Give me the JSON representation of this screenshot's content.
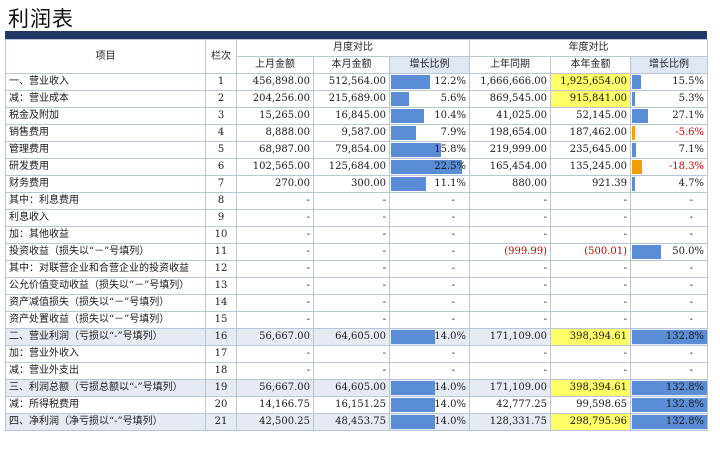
{
  "title": "利润表",
  "header": {
    "item": "项目",
    "col_index": "栏次",
    "monthly_group": "月度对比",
    "yearly_group": "年度对比",
    "last_month": "上月金额",
    "this_month": "本月金额",
    "growth": "增长比例",
    "last_year": "上年同期",
    "this_year": "本年金额",
    "growth_y": "增长比例"
  },
  "colors": {
    "header_bar": "#1f3864",
    "bar": "#5b8cd6",
    "neg_bar": "#f2a000",
    "highlight": "#ffff66",
    "major_row": "#e6ebf3"
  },
  "rows": [
    {
      "name": "一、营业收入",
      "idx": "1",
      "lm": "456,898.00",
      "tm": "512,564.00",
      "mg": "12.2%",
      "mgv": 0.122,
      "ly": "1,666,666.00",
      "ty": "1,925,654.00",
      "yg": "15.5%",
      "ygv": 0.155,
      "hy": true,
      "major": false
    },
    {
      "name": "减：营业成本",
      "idx": "2",
      "lm": "204,256.00",
      "tm": "215,689.00",
      "mg": "5.6%",
      "mgv": 0.056,
      "ly": "869,545.00",
      "ty": "915,841.00",
      "yg": "5.3%",
      "ygv": 0.053,
      "hy": true,
      "major": false
    },
    {
      "name": "税金及附加",
      "idx": "3",
      "lm": "15,265.00",
      "tm": "16,845.00",
      "mg": "10.4%",
      "mgv": 0.104,
      "ly": "41,025.00",
      "ty": "52,145.00",
      "yg": "27.1%",
      "ygv": 0.271,
      "hy": false,
      "major": false
    },
    {
      "name": "销售费用",
      "idx": "4",
      "lm": "8,888.00",
      "tm": "9,587.00",
      "mg": "7.9%",
      "mgv": 0.079,
      "ly": "198,654.00",
      "ty": "187,462.00",
      "yg": "-5.6%",
      "ygv": -0.056,
      "hy": false,
      "major": false
    },
    {
      "name": "管理费用",
      "idx": "5",
      "lm": "68,987.00",
      "tm": "79,854.00",
      "mg": "15.8%",
      "mgv": 0.158,
      "ly": "219,999.00",
      "ty": "235,645.00",
      "yg": "7.1%",
      "ygv": 0.071,
      "hy": false,
      "major": false
    },
    {
      "name": "研发费用",
      "idx": "6",
      "lm": "102,565.00",
      "tm": "125,684.00",
      "mg": "22.5%",
      "mgv": 0.225,
      "ly": "165,454.00",
      "ty": "135,245.00",
      "yg": "-18.3%",
      "ygv": -0.183,
      "hy": false,
      "major": false
    },
    {
      "name": "财务费用",
      "idx": "7",
      "lm": "270.00",
      "tm": "300.00",
      "mg": "11.1%",
      "mgv": 0.111,
      "ly": "880.00",
      "ty": "921.39",
      "yg": "4.7%",
      "ygv": 0.047,
      "hy": false,
      "major": false
    },
    {
      "name": "其中：利息费用",
      "idx": "8",
      "lm": "-",
      "tm": "-",
      "mg": "-",
      "mgv": null,
      "ly": "-",
      "ty": "-",
      "yg": "-",
      "ygv": null,
      "hy": false,
      "major": false
    },
    {
      "name": "利息收入",
      "idx": "9",
      "lm": "-",
      "tm": "-",
      "mg": "-",
      "mgv": null,
      "ly": "-",
      "ty": "-",
      "yg": "-",
      "ygv": null,
      "hy": false,
      "major": false
    },
    {
      "name": "加：其他收益",
      "idx": "10",
      "lm": "-",
      "tm": "-",
      "mg": "-",
      "mgv": null,
      "ly": "-",
      "ty": "-",
      "yg": "-",
      "ygv": null,
      "hy": false,
      "major": false
    },
    {
      "name": "投资收益（损失以“－”号填列）",
      "idx": "11",
      "lm": "-",
      "tm": "-",
      "mg": "-",
      "mgv": null,
      "ly": "(999.99)",
      "ty": "(500.01)",
      "yg": "50.0%",
      "ygv": 0.5,
      "hy": false,
      "major": false,
      "red": true
    },
    {
      "name": "其中：对联营企业和合营企业的投资收益",
      "idx": "12",
      "lm": "-",
      "tm": "-",
      "mg": "-",
      "mgv": null,
      "ly": "-",
      "ty": "-",
      "yg": "-",
      "ygv": null,
      "hy": false,
      "major": false
    },
    {
      "name": "公允价值变动收益（损失以“－”号填列）",
      "idx": "13",
      "lm": "-",
      "tm": "-",
      "mg": "-",
      "mgv": null,
      "ly": "-",
      "ty": "-",
      "yg": "-",
      "ygv": null,
      "hy": false,
      "major": false
    },
    {
      "name": "资产减值损失（损失以“－”号填列）",
      "idx": "14",
      "lm": "-",
      "tm": "-",
      "mg": "-",
      "mgv": null,
      "ly": "-",
      "ty": "-",
      "yg": "-",
      "ygv": null,
      "hy": false,
      "major": false
    },
    {
      "name": "资产处置收益（损失以“－”号填列）",
      "idx": "15",
      "lm": "-",
      "tm": "-",
      "mg": "-",
      "mgv": null,
      "ly": "-",
      "ty": "-",
      "yg": "-",
      "ygv": null,
      "hy": false,
      "major": false
    },
    {
      "name": "二、营业利润（亏损以“-”号填列）",
      "idx": "16",
      "lm": "56,667.00",
      "tm": "64,605.00",
      "mg": "14.0%",
      "mgv": 0.14,
      "ly": "171,109.00",
      "ty": "398,394.61",
      "yg": "132.8%",
      "ygv": 1.328,
      "hy": true,
      "major": true
    },
    {
      "name": "加：营业外收入",
      "idx": "17",
      "lm": "-",
      "tm": "-",
      "mg": "-",
      "mgv": null,
      "ly": "-",
      "ty": "-",
      "yg": "-",
      "ygv": null,
      "hy": false,
      "major": false
    },
    {
      "name": "减：营业外支出",
      "idx": "18",
      "lm": "-",
      "tm": "-",
      "mg": "-",
      "mgv": null,
      "ly": "-",
      "ty": "-",
      "yg": "-",
      "ygv": null,
      "hy": false,
      "major": false
    },
    {
      "name": "三、利润总额（亏损总额以“-”号填列）",
      "idx": "19",
      "lm": "56,667.00",
      "tm": "64,605.00",
      "mg": "14.0%",
      "mgv": 0.14,
      "ly": "171,109.00",
      "ty": "398,394.61",
      "yg": "132.8%",
      "ygv": 1.328,
      "hy": true,
      "major": true
    },
    {
      "name": "减：所得税费用",
      "idx": "20",
      "lm": "14,166.75",
      "tm": "16,151.25",
      "mg": "14.0%",
      "mgv": 0.14,
      "ly": "42,777.25",
      "ty": "99,598.65",
      "yg": "132.8%",
      "ygv": 1.328,
      "hy": false,
      "major": false
    },
    {
      "name": "四、净利润（净亏损以“-”号填列）",
      "idx": "21",
      "lm": "42,500.25",
      "tm": "48,453.75",
      "mg": "14.0%",
      "mgv": 0.14,
      "ly": "128,331.75",
      "ty": "298,795.96",
      "yg": "132.8%",
      "ygv": 1.328,
      "hy": true,
      "major": true
    }
  ]
}
